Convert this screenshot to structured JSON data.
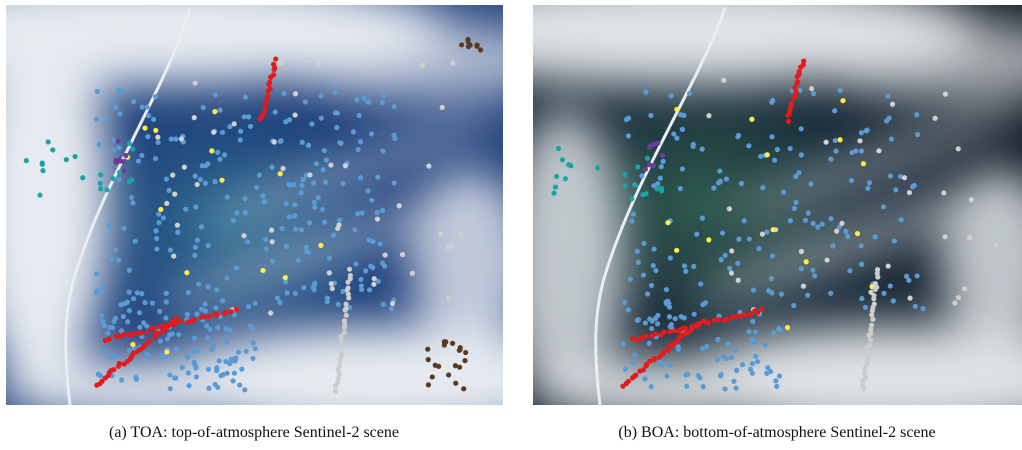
{
  "figure": {
    "panels": [
      {
        "caption": "(a) TOA: top-of-atmosphere Sentinel-2 scene"
      },
      {
        "caption": "(b) BOA: bottom-of-atmosphere Sentinel-2 scene"
      }
    ]
  }
}
